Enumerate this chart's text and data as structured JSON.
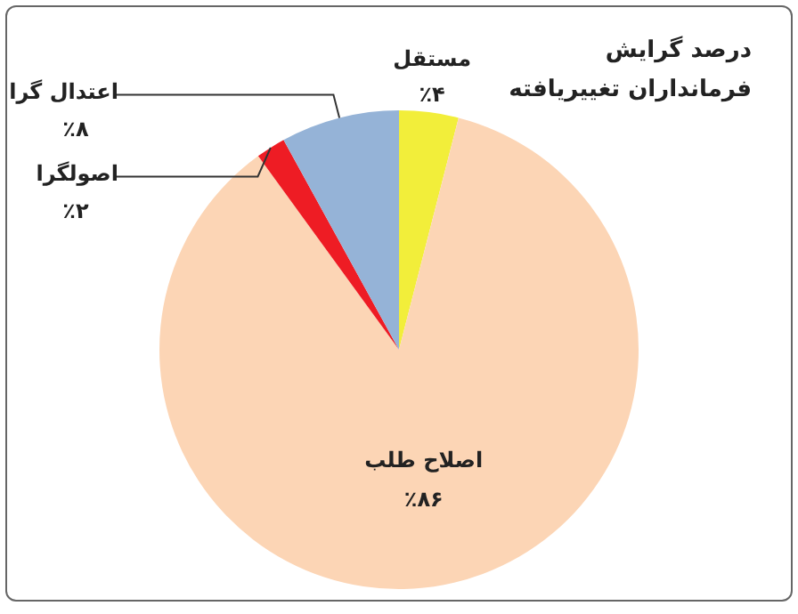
{
  "chart_data": {
    "type": "pie",
    "title": "درصد گرایش\nفرمانداران تغییریافته",
    "categories": [
      "مستقل",
      "اصلاح طلب",
      "اصولگرا",
      "اعتدال گرا"
    ],
    "values": [
      4,
      86,
      2,
      8
    ],
    "colors": [
      "#f2ee3a",
      "#fcd5b5",
      "#ee1c24",
      "#95b3d7"
    ],
    "value_labels": [
      "٪۴",
      "٪۸۶",
      "٪۲",
      "٪۸"
    ],
    "legend": false
  }
}
